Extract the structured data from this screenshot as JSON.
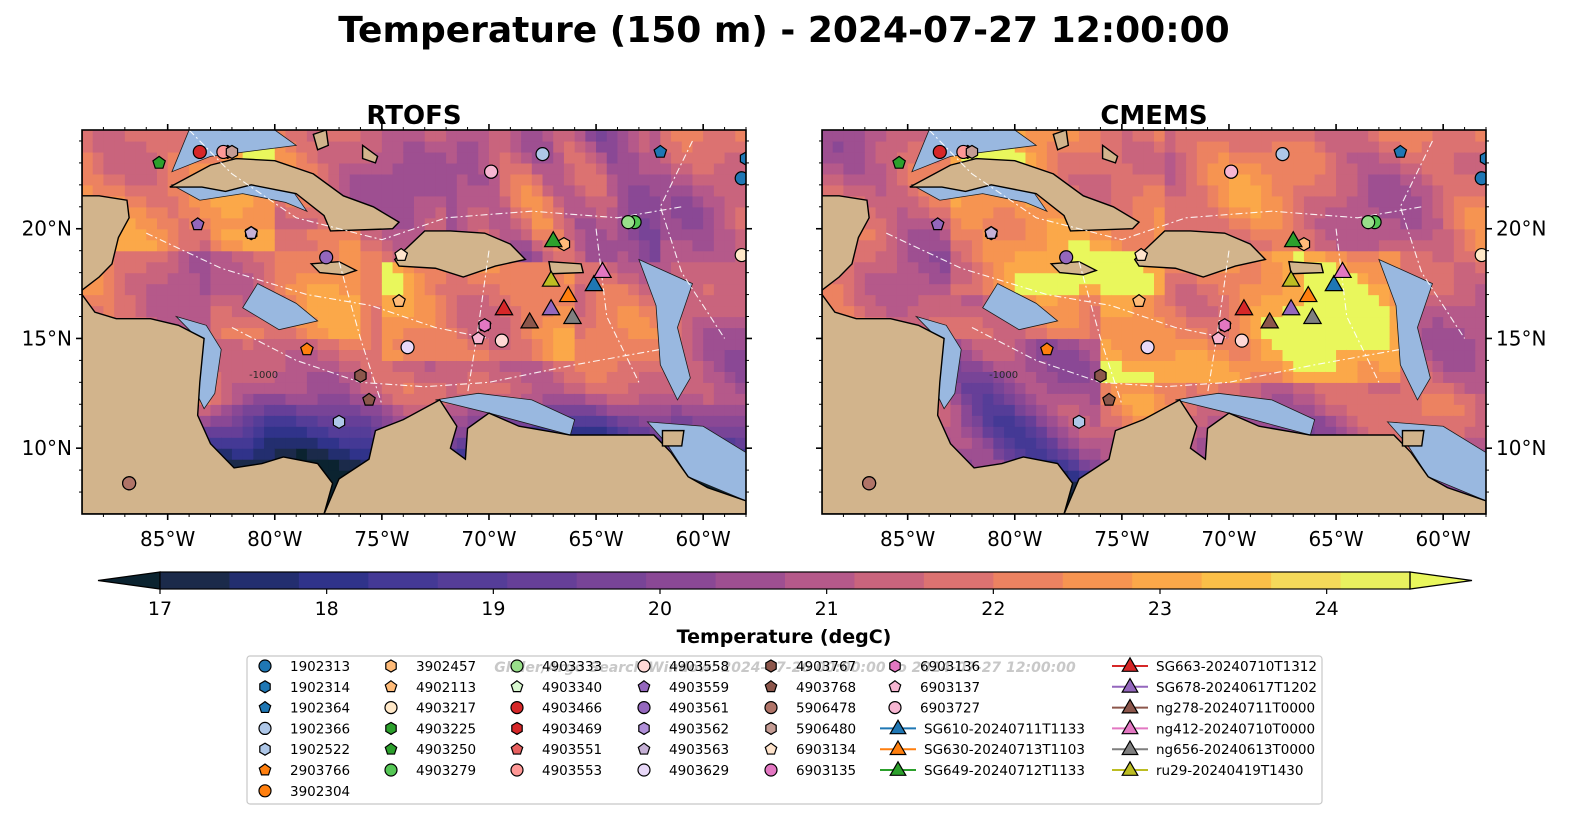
{
  "figure": {
    "title": "Temperature (150 m) - 2024-07-27 12:00:00",
    "watermark": "Glider/Argo Search Window: 2024-07-26 00:00:00 to 2024-07-27 12:00:00"
  },
  "panels": [
    {
      "title": "RTOFS",
      "model": "rtofs"
    },
    {
      "title": "CMEMS",
      "model": "cmems"
    }
  ],
  "map": {
    "lon_range": [
      -89,
      -58
    ],
    "lat_range": [
      7,
      24.5
    ],
    "lon_ticks": [
      -85,
      -80,
      -75,
      -70,
      -65,
      -60
    ],
    "lon_tick_labels": [
      "85°W",
      "80°W",
      "75°W",
      "70°W",
      "65°W",
      "60°W"
    ],
    "lat_ticks": [
      10,
      15,
      20
    ],
    "lat_tick_labels": [
      "10°N",
      "15°N",
      "20°N"
    ],
    "isobath_label": "-1000",
    "land_color": "#d2b48c",
    "shelf_color": "#99b8e0"
  },
  "colorbar": {
    "label": "Temperature (degC)",
    "min": 17,
    "max": 24.5,
    "step": 0.5,
    "ticks": [
      17,
      18,
      19,
      20,
      21,
      22,
      23,
      24
    ],
    "colors": [
      "#1b2a4a",
      "#232e6f",
      "#30338a",
      "#443995",
      "#553d98",
      "#663f98",
      "#784497",
      "#8a4895",
      "#9e4f91",
      "#b5598a",
      "#c9647d",
      "#dc7271",
      "#ec8261",
      "#f69451",
      "#fba849",
      "#fbbf48",
      "#f4d95a",
      "#e8f05f"
    ],
    "under_color": "#0b2330",
    "over_color": "#e9f75c"
  },
  "legend": {
    "entries": [
      {
        "label": "1902313",
        "marker": "circle",
        "color": "#1f77b4"
      },
      {
        "label": "1902314",
        "marker": "hexagon",
        "color": "#1f77b4"
      },
      {
        "label": "1902364",
        "marker": "pentagon",
        "color": "#1f77b4"
      },
      {
        "label": "1902366",
        "marker": "circle",
        "color": "#aec7e8"
      },
      {
        "label": "1902522",
        "marker": "hexagon",
        "color": "#aec7e8"
      },
      {
        "label": "2903766",
        "marker": "pentagon",
        "color": "#ff7f0e"
      },
      {
        "label": "3902304",
        "marker": "circle",
        "color": "#ff7f0e"
      },
      {
        "label": "3902457",
        "marker": "hexagon",
        "color": "#ffbb78"
      },
      {
        "label": "4902113",
        "marker": "pentagon",
        "color": "#ffbb78"
      },
      {
        "label": "4903217",
        "marker": "circle",
        "color": "#ffe8c8"
      },
      {
        "label": "4903225",
        "marker": "hexagon",
        "color": "#2ca02c"
      },
      {
        "label": "4903250",
        "marker": "pentagon",
        "color": "#2ca02c"
      },
      {
        "label": "4903279",
        "marker": "circle",
        "color": "#55c755"
      },
      {
        "label": "4903333",
        "marker": "circle",
        "color": "#98df8a"
      },
      {
        "label": "4903340",
        "marker": "pentagon",
        "color": "#d8f8d0"
      },
      {
        "label": "4903466",
        "marker": "circle",
        "color": "#d62728"
      },
      {
        "label": "4903469",
        "marker": "hexagon",
        "color": "#d62728"
      },
      {
        "label": "4903551",
        "marker": "pentagon",
        "color": "#e8605f"
      },
      {
        "label": "4903553",
        "marker": "circle",
        "color": "#ff9896"
      },
      {
        "label": "4903558",
        "marker": "circle",
        "color": "#ffd8d6"
      },
      {
        "label": "4903559",
        "marker": "pentagon",
        "color": "#9467bd"
      },
      {
        "label": "4903561",
        "marker": "circle",
        "color": "#9467bd"
      },
      {
        "label": "4903562",
        "marker": "hexagon",
        "color": "#b08fd8"
      },
      {
        "label": "4903563",
        "marker": "pentagon",
        "color": "#c5b0d5"
      },
      {
        "label": "4903629",
        "marker": "circle",
        "color": "#e8d8f8"
      },
      {
        "label": "4903767",
        "marker": "hexagon",
        "color": "#8c564b"
      },
      {
        "label": "4903768",
        "marker": "pentagon",
        "color": "#8c564b"
      },
      {
        "label": "5906478",
        "marker": "circle",
        "color": "#b07468"
      },
      {
        "label": "5906480",
        "marker": "hexagon",
        "color": "#c49c94"
      },
      {
        "label": "6903134",
        "marker": "pentagon",
        "color": "#ffe4cc"
      },
      {
        "label": "6903135",
        "marker": "circle",
        "color": "#e377c2"
      },
      {
        "label": "6903136",
        "marker": "hexagon",
        "color": "#e377c2"
      },
      {
        "label": "6903137",
        "marker": "pentagon",
        "color": "#f7b6d2"
      },
      {
        "label": "6903727",
        "marker": "circle",
        "color": "#f7b6d2"
      },
      {
        "label": "SG610-20240711T1133",
        "marker": "triangle",
        "color": "#1f77b4"
      },
      {
        "label": "SG630-20240713T1103",
        "marker": "triangle",
        "color": "#ff7f0e"
      },
      {
        "label": "SG649-20240712T1133",
        "marker": "triangle",
        "color": "#2ca02c"
      },
      {
        "label": "SG663-20240710T1312",
        "marker": "triangle",
        "color": "#d62728"
      },
      {
        "label": "SG678-20240617T1202",
        "marker": "triangle",
        "color": "#9467bd"
      },
      {
        "label": "ng278-20240711T0000",
        "marker": "triangle",
        "color": "#8c564b"
      },
      {
        "label": "ng412-20240710T0000",
        "marker": "triangle",
        "color": "#e377c2"
      },
      {
        "label": "ng656-20240613T0000",
        "marker": "triangle",
        "color": "#7f7f7f"
      },
      {
        "label": "ru29-20240419T1430",
        "marker": "triangle",
        "color": "#bcbd22"
      }
    ]
  },
  "observations": [
    {
      "id": "1902313",
      "lon": -58.2,
      "lat": 22.3
    },
    {
      "id": "1902314",
      "lon": -58.0,
      "lat": 23.2
    },
    {
      "id": "1902364",
      "lon": -62.0,
      "lat": 23.5
    },
    {
      "id": "1902366",
      "lon": -67.5,
      "lat": 23.4
    },
    {
      "id": "1902522",
      "lon": -77.0,
      "lat": 11.2
    },
    {
      "id": "2903766",
      "lon": -78.5,
      "lat": 14.5
    },
    {
      "id": "3902304",
      "lon": -86.8,
      "lat": 8.4
    },
    {
      "id": "3902457",
      "lon": -66.5,
      "lat": 19.3
    },
    {
      "id": "4902113",
      "lon": -74.2,
      "lat": 16.7
    },
    {
      "id": "4903217",
      "lon": -58.2,
      "lat": 18.8
    },
    {
      "id": "4903225",
      "lon": -63.5,
      "lat": 20.3
    },
    {
      "id": "4903250",
      "lon": -85.4,
      "lat": 23.0
    },
    {
      "id": "4903279",
      "lon": -63.2,
      "lat": 20.3
    },
    {
      "id": "4903333",
      "lon": -63.5,
      "lat": 20.3
    },
    {
      "id": "4903340",
      "lon": -74.1,
      "lat": 18.8
    },
    {
      "id": "4903466",
      "lon": -83.5,
      "lat": 23.5
    },
    {
      "id": "4903469",
      "lon": -82.2,
      "lat": 23.5
    },
    {
      "id": "4903551",
      "lon": -70.2,
      "lat": 15.6
    },
    {
      "id": "4903553",
      "lon": -82.4,
      "lat": 23.5
    },
    {
      "id": "4903558",
      "lon": -69.4,
      "lat": 14.9
    },
    {
      "id": "4903559",
      "lon": -83.6,
      "lat": 20.2
    },
    {
      "id": "4903561",
      "lon": -77.6,
      "lat": 18.7
    },
    {
      "id": "4903562",
      "lon": -81.1,
      "lat": 19.8
    },
    {
      "id": "4903563",
      "lon": -81.1,
      "lat": 19.8
    },
    {
      "id": "4903629",
      "lon": -73.8,
      "lat": 14.6
    },
    {
      "id": "4903767",
      "lon": -76.0,
      "lat": 13.3
    },
    {
      "id": "4903768",
      "lon": -75.6,
      "lat": 12.2
    },
    {
      "id": "5906478",
      "lon": -86.8,
      "lat": 8.4
    },
    {
      "id": "5906480",
      "lon": -82.0,
      "lat": 23.5
    },
    {
      "id": "6903134",
      "lon": -74.1,
      "lat": 18.8
    },
    {
      "id": "6903135",
      "lon": -69.9,
      "lat": 22.6
    },
    {
      "id": "6903136",
      "lon": -70.2,
      "lat": 15.6
    },
    {
      "id": "6903137",
      "lon": -70.5,
      "lat": 15.0
    },
    {
      "id": "6903727",
      "lon": -69.9,
      "lat": 22.6
    },
    {
      "id": "SG610-20240711T1133",
      "lon": -65.1,
      "lat": 17.5
    },
    {
      "id": "SG630-20240713T1103",
      "lon": -66.3,
      "lat": 17.0
    },
    {
      "id": "SG649-20240712T1133",
      "lon": -67.0,
      "lat": 19.5
    },
    {
      "id": "SG663-20240710T1312",
      "lon": -69.3,
      "lat": 16.4
    },
    {
      "id": "SG678-20240617T1202",
      "lon": -67.1,
      "lat": 16.4
    },
    {
      "id": "ng278-20240711T0000",
      "lon": -68.1,
      "lat": 15.8
    },
    {
      "id": "ng412-20240710T0000",
      "lon": -64.7,
      "lat": 18.1
    },
    {
      "id": "ng656-20240613T0000",
      "lon": -66.1,
      "lat": 16.0
    },
    {
      "id": "ru29-20240419T1430",
      "lon": -67.1,
      "lat": 17.7
    }
  ]
}
